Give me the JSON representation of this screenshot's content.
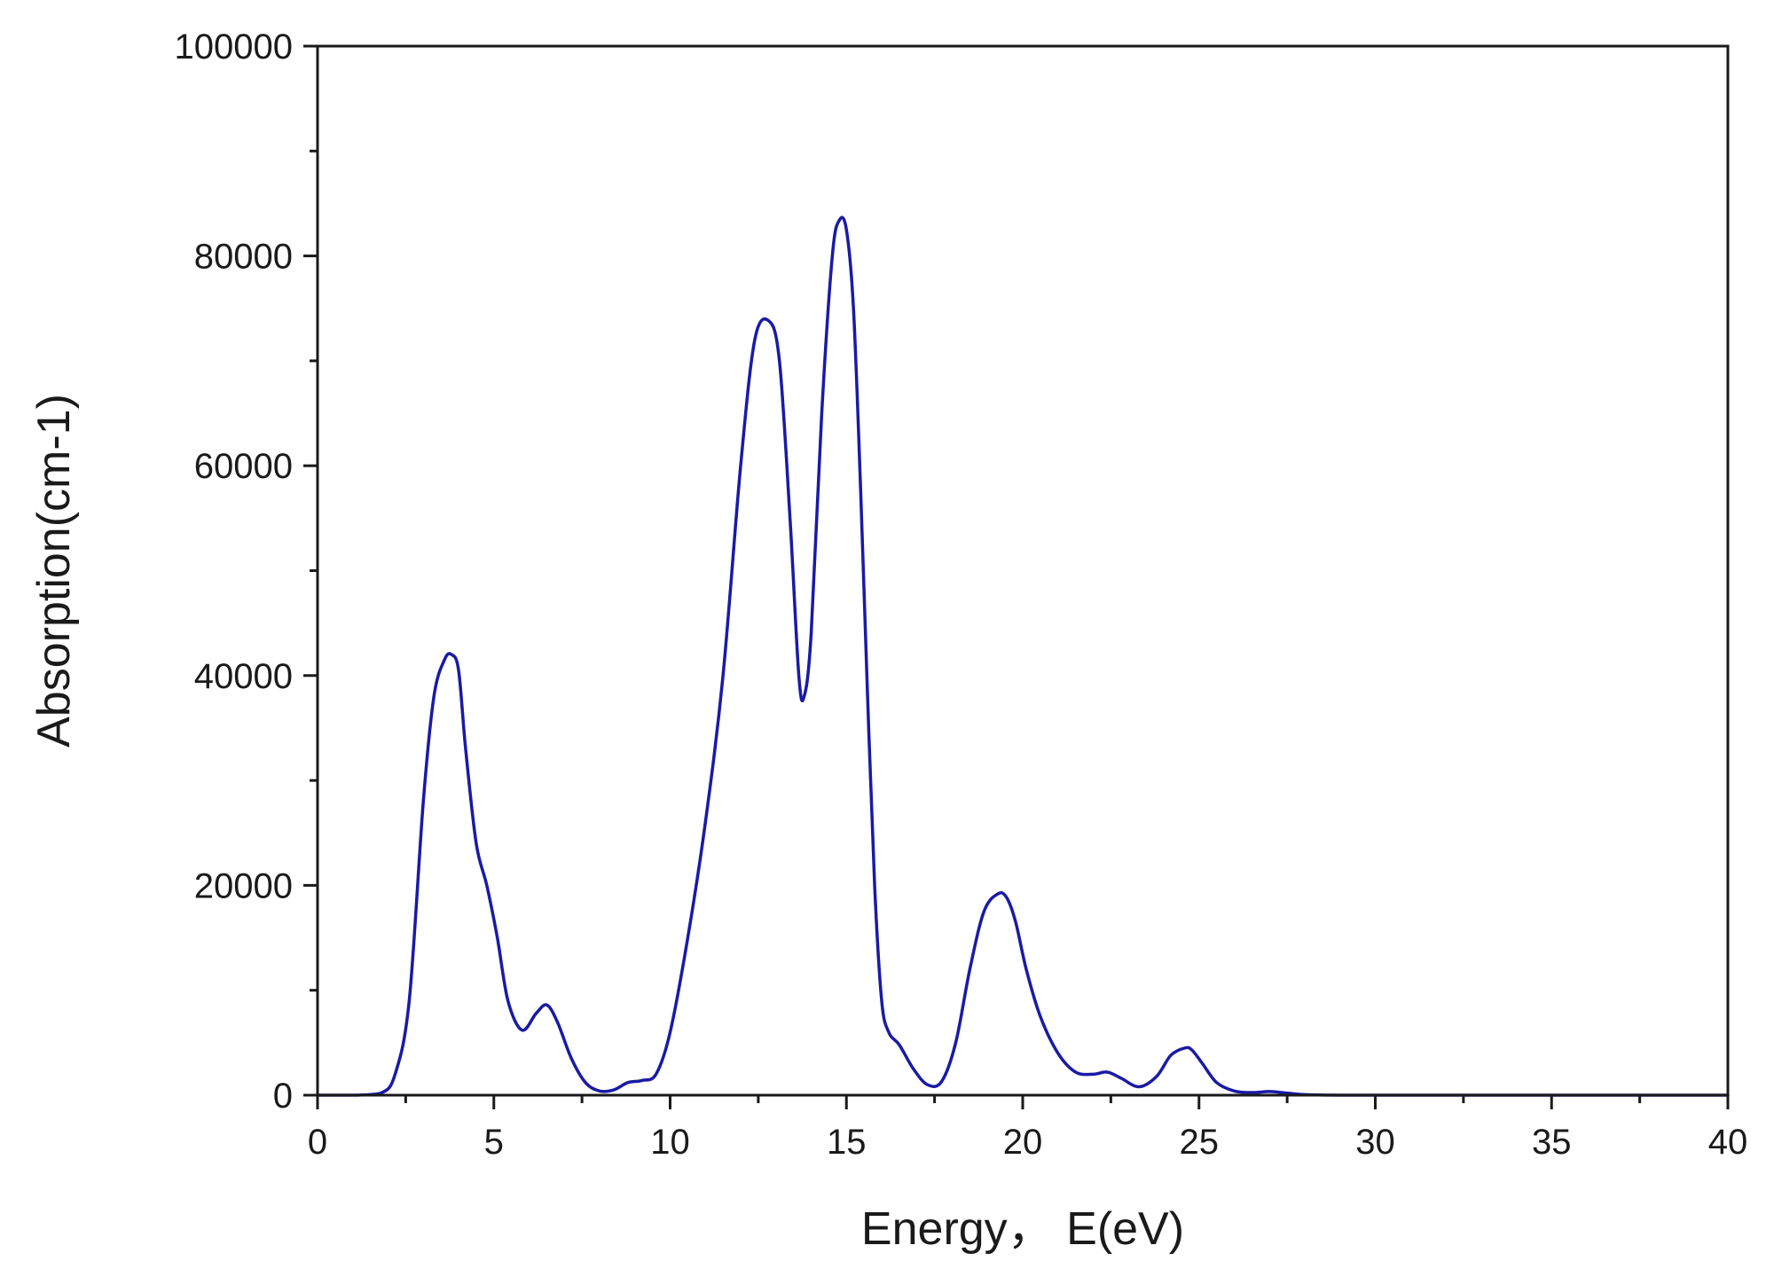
{
  "chart_data": {
    "type": "line",
    "title": "",
    "xlabel": "Energy， E(eV)",
    "ylabel": "Absorption(cm-1)",
    "xlim": [
      0,
      40
    ],
    "ylim": [
      0,
      100000
    ],
    "x_ticks": [
      0,
      5,
      10,
      15,
      20,
      25,
      30,
      35,
      40
    ],
    "x_tick_labels": [
      "0",
      "5",
      "10",
      "15",
      "20",
      "25",
      "30",
      "35",
      "40"
    ],
    "y_ticks": [
      0,
      20000,
      40000,
      60000,
      80000,
      100000
    ],
    "y_tick_labels": [
      "0",
      "20000",
      "40000",
      "60000",
      "80000",
      "100000"
    ],
    "grid": false,
    "legend": "none",
    "line_color": "#1a1aa6",
    "series": [
      {
        "x": [
          0,
          1,
          1.8,
          2.2,
          2.6,
          3.0,
          3.3,
          3.6,
          3.8,
          4.0,
          4.2,
          4.5,
          4.8,
          5.1,
          5.4,
          5.8,
          6.2,
          6.5,
          6.8,
          7.2,
          7.6,
          8.0,
          8.4,
          8.8,
          9.2,
          9.6,
          10.0,
          10.5,
          11.0,
          11.5,
          12.0,
          12.4,
          12.8,
          13.1,
          13.4,
          13.65,
          13.8,
          14.0,
          14.3,
          14.6,
          14.8,
          15.0,
          15.2,
          15.4,
          15.6,
          15.8,
          16.0,
          16.2,
          16.5,
          16.9,
          17.3,
          17.7,
          18.1,
          18.5,
          18.9,
          19.3,
          19.55,
          19.8,
          20.1,
          20.5,
          21.0,
          21.5,
          22.0,
          22.4,
          22.8,
          23.3,
          23.8,
          24.2,
          24.6,
          24.8,
          25.1,
          25.5,
          26.0,
          26.5,
          27.0,
          27.5,
          28.0,
          29.0,
          32.0,
          36.0,
          40.0
        ],
        "y": [
          0,
          0,
          200,
          2000,
          9000,
          28000,
          38000,
          41500,
          42000,
          40500,
          33000,
          24000,
          20000,
          15000,
          9000,
          6200,
          7800,
          8600,
          7000,
          3500,
          1200,
          400,
          500,
          1200,
          1400,
          2000,
          6000,
          15000,
          26000,
          40000,
          60000,
          72000,
          73800,
          70000,
          55000,
          40000,
          38000,
          44000,
          65000,
          80000,
          83400,
          82500,
          75000,
          58000,
          38000,
          20000,
          9000,
          6000,
          4800,
          2500,
          1000,
          1300,
          5000,
          12000,
          17500,
          19200,
          18800,
          16500,
          12000,
          7500,
          4000,
          2200,
          2000,
          2200,
          1600,
          800,
          1800,
          3800,
          4500,
          4300,
          3000,
          1200,
          400,
          250,
          350,
          200,
          50,
          0,
          0,
          0,
          0
        ]
      }
    ]
  }
}
